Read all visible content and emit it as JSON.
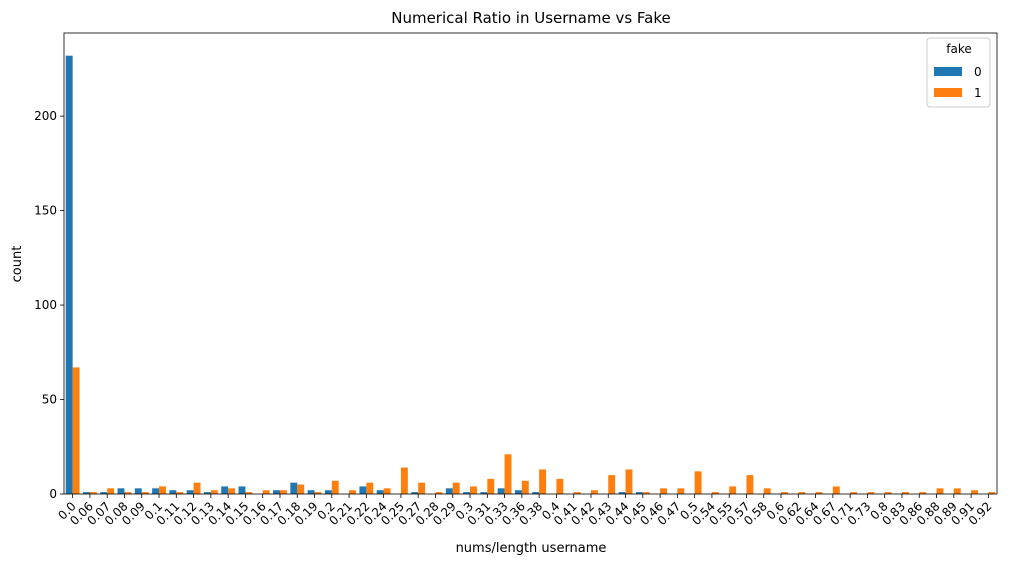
{
  "chart_data": {
    "type": "bar",
    "title": "Numerical Ratio in Username vs Fake",
    "xlabel": "nums/length username",
    "ylabel": "count",
    "ylim": [
      0,
      244
    ],
    "yticks": [
      0,
      50,
      100,
      150,
      200
    ],
    "grid": false,
    "legend": {
      "title": "fake",
      "placement": "top-right"
    },
    "categories": [
      "0.0",
      "0.06",
      "0.07",
      "0.08",
      "0.09",
      "0.1",
      "0.11",
      "0.12",
      "0.13",
      "0.14",
      "0.15",
      "0.16",
      "0.17",
      "0.18",
      "0.19",
      "0.2",
      "0.21",
      "0.22",
      "0.24",
      "0.25",
      "0.27",
      "0.28",
      "0.29",
      "0.3",
      "0.31",
      "0.33",
      "0.36",
      "0.38",
      "0.4",
      "0.41",
      "0.42",
      "0.43",
      "0.44",
      "0.45",
      "0.46",
      "0.47",
      "0.5",
      "0.54",
      "0.55",
      "0.57",
      "0.58",
      "0.6",
      "0.62",
      "0.64",
      "0.67",
      "0.71",
      "0.73",
      "0.8",
      "0.83",
      "0.86",
      "0.88",
      "0.89",
      "0.91",
      "0.92"
    ],
    "series": [
      {
        "name": "0",
        "color": "#1f77b4",
        "values": [
          232,
          1,
          1,
          3,
          3,
          3,
          2,
          2,
          1,
          4,
          4,
          0,
          2,
          6,
          2,
          2,
          0,
          4,
          2,
          0,
          1,
          0,
          3,
          1,
          1,
          3,
          2,
          1,
          0,
          0,
          0,
          0,
          1,
          1,
          0,
          0,
          0,
          0,
          0,
          0,
          0,
          0,
          0,
          0,
          0,
          0,
          0,
          0,
          0,
          0,
          0,
          0,
          0,
          0
        ]
      },
      {
        "name": "1",
        "color": "#ff7f0e",
        "values": [
          67,
          1,
          3,
          1,
          1,
          4,
          1,
          6,
          2,
          3,
          1,
          2,
          2,
          5,
          1,
          7,
          2,
          6,
          3,
          14,
          6,
          1,
          6,
          4,
          8,
          21,
          7,
          13,
          8,
          1,
          2,
          10,
          13,
          1,
          3,
          3,
          12,
          1,
          4,
          10,
          3,
          1,
          1,
          1,
          4,
          1,
          1,
          1,
          1,
          1,
          3,
          3,
          2,
          1
        ]
      }
    ]
  }
}
